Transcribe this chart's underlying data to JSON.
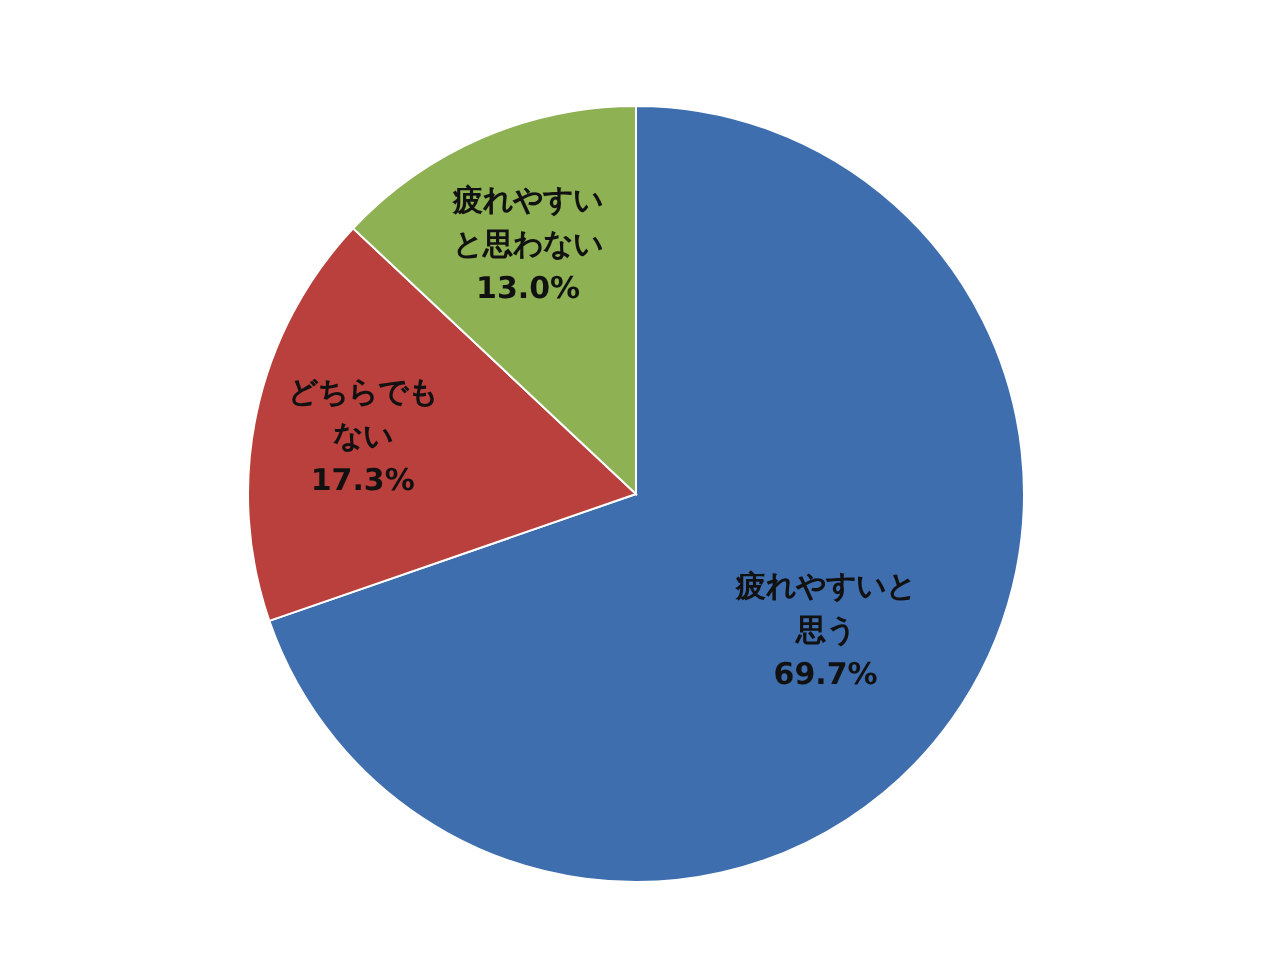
{
  "chart_data": {
    "type": "pie",
    "categories": [
      "疲れやすいと思う",
      "どちらでもない",
      "疲れやすいと思わない"
    ],
    "values": [
      69.7,
      17.3,
      13.0
    ],
    "colors": [
      "#3e6eae",
      "#b9403c",
      "#8db153"
    ],
    "value_labels": [
      "69.7%",
      "17.3%",
      "13.0%"
    ]
  }
}
